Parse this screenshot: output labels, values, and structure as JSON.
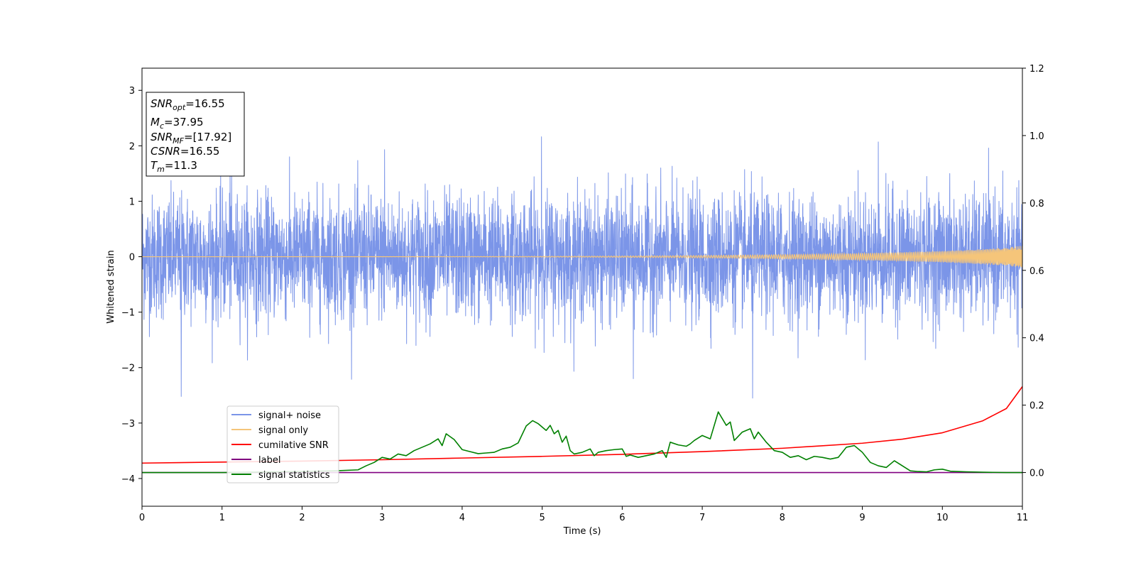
{
  "chart_data": {
    "type": "line",
    "xlabel": "Time (s)",
    "ylabel": "Whitened strain",
    "xlim": [
      0,
      11
    ],
    "ylim": [
      -4.5,
      3.4
    ],
    "y2lim": [
      -0.1,
      1.2
    ],
    "x_ticks": [
      "0",
      "1",
      "2",
      "3",
      "4",
      "5",
      "6",
      "7",
      "8",
      "9",
      "10",
      "11"
    ],
    "y_ticks": [
      "3",
      "2",
      "1",
      "0",
      "−1",
      "−2",
      "−3",
      "−4"
    ],
    "y_tick_values": [
      3,
      2,
      1,
      0,
      -1,
      -2,
      -3,
      -4
    ],
    "y2_ticks": [
      "1.2",
      "1.0",
      "0.8",
      "0.6",
      "0.4",
      "0.2",
      "0.0"
    ],
    "y2_tick_values": [
      1.2,
      1.0,
      0.8,
      0.6,
      0.4,
      0.2,
      0.0
    ],
    "grid": false,
    "legend_position": "lower-left",
    "info_box": {
      "snr_opt": {
        "main": "SNR",
        "sub": "opt",
        "value": "=16.55"
      },
      "mc": {
        "main": "M",
        "sub": "c",
        "value": "=37.95"
      },
      "snr_mf": {
        "main": "SNR",
        "sub": "MF",
        "value": "=[17.92]"
      },
      "csnr": {
        "main": "CSNR",
        "sub": "",
        "value": "=16.55"
      },
      "tm": {
        "main": "T",
        "sub": "m",
        "value": "=11.3"
      }
    },
    "series": [
      {
        "name": "signal+ noise",
        "color": "#7b95e8",
        "axis": "left",
        "description": "dense noisy strain, std approx 0.55, range about -2.55 to 2.25",
        "noise_std": 0.55,
        "extremes": [
          [
            0.49,
            -2.52
          ],
          [
            4.99,
            2.23
          ],
          [
            7.63,
            -2.57
          ],
          [
            9.2,
            2.07
          ],
          [
            1.1,
            1.63
          ],
          [
            3.03,
            1.93
          ],
          [
            6.14,
            -2.2
          ]
        ]
      },
      {
        "name": "signal only",
        "color": "#f5c57a",
        "axis": "left",
        "description": "chirp, amplitude growing from ~0 to ~0.2 at t=11"
      },
      {
        "name": "cumilative SNR",
        "color": "#ff0000",
        "axis": "right",
        "x": [
          0,
          1,
          2,
          3,
          4,
          5,
          6,
          7,
          8,
          9,
          9.5,
          10,
          10.5,
          10.8,
          11
        ],
        "y": [
          0.028,
          0.031,
          0.034,
          0.038,
          0.043,
          0.048,
          0.054,
          0.062,
          0.072,
          0.087,
          0.099,
          0.118,
          0.153,
          0.19,
          0.255
        ]
      },
      {
        "name": "label",
        "color": "#800080",
        "axis": "right",
        "x": [
          0,
          11
        ],
        "y": [
          0.0,
          0.0
        ]
      },
      {
        "name": "signal statistics",
        "color": "#008000",
        "axis": "right",
        "x": [
          0,
          1,
          2,
          2.4,
          2.7,
          2.8,
          2.9,
          3.0,
          3.1,
          3.2,
          3.3,
          3.4,
          3.5,
          3.6,
          3.7,
          3.75,
          3.8,
          3.9,
          4.0,
          4.1,
          4.2,
          4.3,
          4.4,
          4.5,
          4.6,
          4.7,
          4.8,
          4.88,
          4.95,
          5.0,
          5.05,
          5.1,
          5.15,
          5.2,
          5.25,
          5.3,
          5.35,
          5.4,
          5.5,
          5.6,
          5.65,
          5.7,
          5.8,
          5.9,
          6.0,
          6.05,
          6.1,
          6.2,
          6.3,
          6.4,
          6.5,
          6.55,
          6.6,
          6.7,
          6.8,
          6.85,
          6.9,
          7.0,
          7.1,
          7.2,
          7.3,
          7.35,
          7.4,
          7.5,
          7.6,
          7.65,
          7.7,
          7.8,
          7.9,
          8.0,
          8.1,
          8.2,
          8.3,
          8.4,
          8.5,
          8.6,
          8.7,
          8.8,
          8.9,
          9.0,
          9.1,
          9.2,
          9.3,
          9.4,
          9.5,
          9.6,
          9.7,
          9.8,
          9.9,
          10.0,
          10.1,
          10.3,
          10.5,
          10.8,
          11
        ],
        "y": [
          0.0,
          0.0,
          0.003,
          0.005,
          0.008,
          0.02,
          0.03,
          0.045,
          0.04,
          0.055,
          0.05,
          0.065,
          0.075,
          0.085,
          0.1,
          0.08,
          0.115,
          0.098,
          0.068,
          0.062,
          0.056,
          0.058,
          0.06,
          0.07,
          0.075,
          0.088,
          0.138,
          0.154,
          0.145,
          0.135,
          0.125,
          0.14,
          0.115,
          0.125,
          0.09,
          0.108,
          0.065,
          0.055,
          0.06,
          0.07,
          0.05,
          0.06,
          0.065,
          0.068,
          0.07,
          0.048,
          0.052,
          0.045,
          0.05,
          0.055,
          0.065,
          0.045,
          0.09,
          0.082,
          0.078,
          0.085,
          0.095,
          0.11,
          0.1,
          0.18,
          0.14,
          0.15,
          0.095,
          0.12,
          0.13,
          0.1,
          0.12,
          0.09,
          0.065,
          0.06,
          0.045,
          0.05,
          0.038,
          0.048,
          0.045,
          0.04,
          0.045,
          0.075,
          0.08,
          0.06,
          0.03,
          0.02,
          0.015,
          0.035,
          0.02,
          0.005,
          0.003,
          0.002,
          0.008,
          0.01,
          0.004,
          0.002,
          0.001,
          0.0,
          0.0
        ]
      }
    ]
  }
}
